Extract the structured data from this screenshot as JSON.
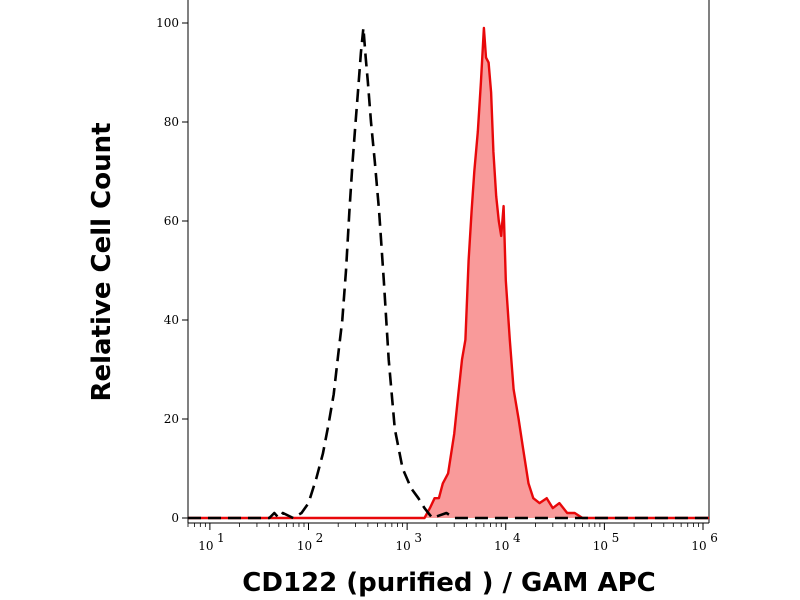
{
  "chart_data": {
    "type": "area",
    "xlabel": "CD122 (purified ) / GAM APC",
    "ylabel": "Relative Cell Count",
    "x_scale": "log",
    "xlim": [
      6,
      1150000
    ],
    "ylim": [
      0,
      100
    ],
    "x_ticks": [
      {
        "value": 10,
        "base": "10",
        "exp": "1"
      },
      {
        "value": 100,
        "base": "10",
        "exp": "2"
      },
      {
        "value": 1000,
        "base": "10",
        "exp": "3"
      },
      {
        "value": 10000,
        "base": "10",
        "exp": "4"
      },
      {
        "value": 100000,
        "base": "10",
        "exp": "5"
      },
      {
        "value": 1000000,
        "base": "10",
        "exp": "6"
      }
    ],
    "y_ticks": [
      {
        "value": 0,
        "label": "0"
      },
      {
        "value": 20,
        "label": "20"
      },
      {
        "value": 40,
        "label": "40"
      },
      {
        "value": 60,
        "label": "60"
      },
      {
        "value": 80,
        "label": "80"
      },
      {
        "value": 100,
        "label": "100"
      }
    ],
    "grid": false,
    "series": [
      {
        "style": "dashed",
        "color": "#000000",
        "fill": "none",
        "points": [
          [
            6,
            0
          ],
          [
            40,
            0
          ],
          [
            45,
            1
          ],
          [
            50,
            0
          ],
          [
            55,
            1
          ],
          [
            70,
            0
          ],
          [
            85,
            1
          ],
          [
            100,
            3
          ],
          [
            120,
            8
          ],
          [
            140,
            13
          ],
          [
            160,
            19
          ],
          [
            180,
            25
          ],
          [
            200,
            33
          ],
          [
            220,
            40
          ],
          [
            240,
            50
          ],
          [
            260,
            62
          ],
          [
            280,
            72
          ],
          [
            300,
            80
          ],
          [
            320,
            87
          ],
          [
            340,
            94
          ],
          [
            360,
            99
          ],
          [
            380,
            93
          ],
          [
            400,
            88
          ],
          [
            430,
            80
          ],
          [
            470,
            72
          ],
          [
            520,
            62
          ],
          [
            580,
            48
          ],
          [
            650,
            32
          ],
          [
            750,
            18
          ],
          [
            900,
            10
          ],
          [
            1100,
            6
          ],
          [
            1300,
            4
          ],
          [
            1500,
            2
          ],
          [
            1800,
            0
          ],
          [
            2500,
            1
          ],
          [
            3000,
            0
          ],
          [
            5000,
            0
          ],
          [
            8000,
            0
          ],
          [
            1150000,
            0
          ]
        ]
      },
      {
        "style": "solid",
        "color": "#e8080a",
        "fill": "#f99a9a",
        "points": [
          [
            6,
            0
          ],
          [
            1500,
            0
          ],
          [
            1700,
            2
          ],
          [
            1900,
            4
          ],
          [
            2100,
            4
          ],
          [
            2300,
            7
          ],
          [
            2600,
            9
          ],
          [
            3000,
            17
          ],
          [
            3300,
            25
          ],
          [
            3600,
            32
          ],
          [
            3900,
            36
          ],
          [
            4200,
            52
          ],
          [
            4500,
            62
          ],
          [
            4800,
            70
          ],
          [
            5200,
            78
          ],
          [
            5600,
            88
          ],
          [
            6000,
            99
          ],
          [
            6300,
            93
          ],
          [
            6700,
            92
          ],
          [
            7100,
            86
          ],
          [
            7500,
            74
          ],
          [
            8000,
            65
          ],
          [
            8500,
            60
          ],
          [
            9000,
            57
          ],
          [
            9500,
            63
          ],
          [
            10000,
            48
          ],
          [
            11000,
            36
          ],
          [
            12000,
            26
          ],
          [
            13500,
            20
          ],
          [
            15000,
            14
          ],
          [
            17000,
            7
          ],
          [
            19000,
            4
          ],
          [
            22000,
            3
          ],
          [
            26000,
            4
          ],
          [
            30000,
            2
          ],
          [
            35000,
            3
          ],
          [
            42000,
            1
          ],
          [
            50000,
            1
          ],
          [
            60000,
            0
          ],
          [
            1150000,
            0
          ]
        ]
      }
    ]
  }
}
